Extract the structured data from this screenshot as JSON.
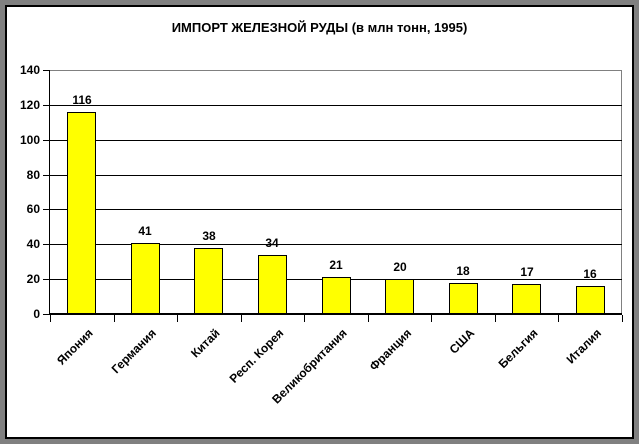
{
  "chart_data": {
    "type": "bar",
    "title": "ИМПОРТ ЖЕЛЕЗНОЙ РУДЫ (в млн тонн, 1995)",
    "categories": [
      "Япония",
      "Германия",
      "Китай",
      "Респ. Корея",
      "Великобритания",
      "Франция",
      "США",
      "Бельгия",
      "Италия"
    ],
    "values": [
      116,
      41,
      38,
      34,
      21,
      20,
      18,
      17,
      16
    ],
    "xlabel": "",
    "ylabel": "",
    "ylim": [
      0,
      140
    ],
    "ytick_step": 20,
    "grid": true,
    "legend": false,
    "bar_fill_color": "#FFFF00",
    "bar_border_color": "#000000",
    "plot_border_color": "#808080",
    "gridline_color": "#000000",
    "frame_color": "#808080",
    "text_color": "#000000"
  }
}
